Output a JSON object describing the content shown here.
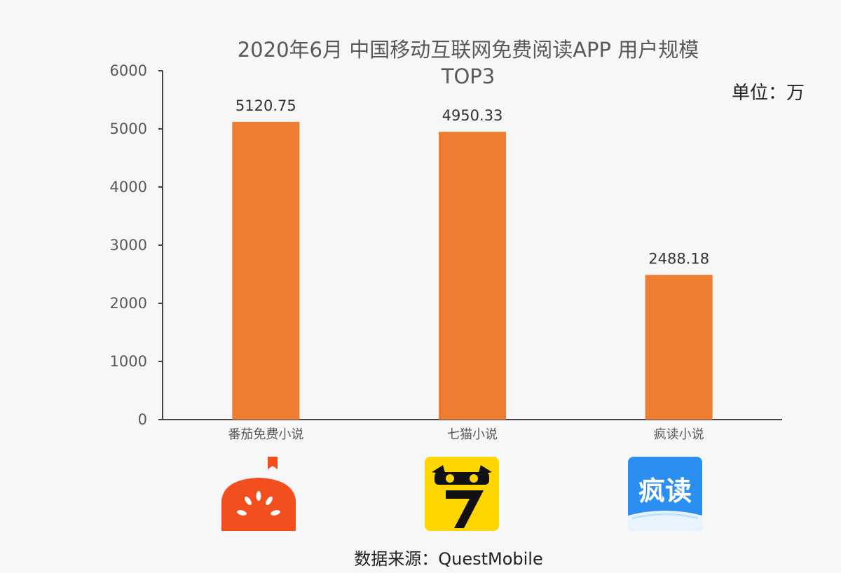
{
  "chart_data": {
    "type": "bar",
    "title_line1": "2020年6月 中国移动互联网免费阅读APP 用户规模",
    "title_line2": "TOP3",
    "unit_label": "单位：万",
    "categories": [
      "番茄免费小说",
      "七猫小说",
      "疯读小说"
    ],
    "values": [
      5120.75,
      4950.33,
      2488.18
    ],
    "value_labels": [
      "5120.75",
      "4950.33",
      "2488.18"
    ],
    "ylim": [
      0,
      6000
    ],
    "yticks": [
      0,
      1000,
      2000,
      3000,
      4000,
      5000,
      6000
    ],
    "bar_color": "#ed7d31",
    "grid": false,
    "legend": "none"
  },
  "icons": [
    {
      "name": "fanqie-app-icon",
      "color": "#f24e1e"
    },
    {
      "name": "qimao-app-icon",
      "color": "#ffd600",
      "glyph": "7"
    },
    {
      "name": "fengdu-app-icon",
      "color": "#1f8ef1",
      "text": "疯读"
    }
  ],
  "source": "数据来源：QuestMobile"
}
